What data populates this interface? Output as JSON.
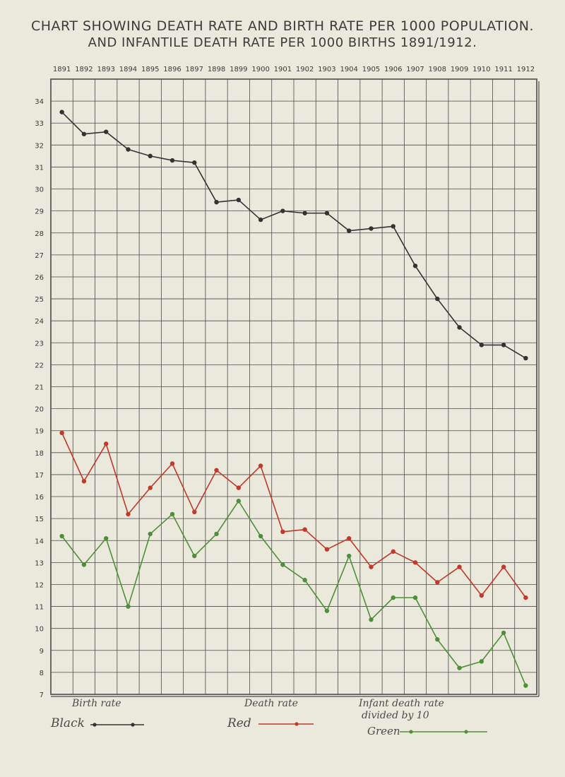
{
  "title_line1": "CHART SHOWING DEATH RATE AND BIRTH RATE PER 1000 POPULATION.",
  "title_line2": "AND INFANTILE DEATH RATE PER 1000 BIRTHS 1891/1912.",
  "colors": {
    "background": "#ebe8dc",
    "grid": "#4a4a4a",
    "birth_rate": "#333333",
    "death_rate": "#c0392b",
    "infant_death_rate": "#4f8f3a"
  },
  "legend": {
    "birth_label": "Birth rate",
    "birth_color_word": "Black",
    "death_label": "Death rate",
    "death_color_word": "Red",
    "infant_label_line1": "Infant death rate",
    "infant_label_line2": "divided by 10",
    "infant_color_word": "Green"
  },
  "chart_data": {
    "type": "line",
    "title": "CHART SHOWING DEATH RATE AND BIRTH RATE PER 1000 POPULATION. AND INFANTILE DEATH RATE PER 1000 BIRTHS 1891/1912.",
    "x": [
      "1891",
      "1892",
      "1893",
      "1894",
      "1895",
      "1896",
      "1897",
      "1898",
      "1899",
      "1900",
      "1901",
      "1902",
      "1903",
      "1904",
      "1905",
      "1906",
      "1907",
      "1908",
      "1909",
      "1910",
      "1911",
      "1912"
    ],
    "ylim": [
      7,
      35
    ],
    "yticks": [
      7,
      8,
      9,
      10,
      11,
      12,
      13,
      14,
      15,
      16,
      17,
      18,
      19,
      20,
      21,
      22,
      23,
      24,
      25,
      26,
      27,
      28,
      29,
      30,
      31,
      32,
      33,
      34
    ],
    "grid": true,
    "legend_position": "bottom",
    "series": [
      {
        "name": "Birth rate",
        "color": "black",
        "values": [
          33.5,
          32.5,
          32.6,
          31.8,
          31.5,
          31.3,
          31.2,
          29.4,
          29.5,
          28.6,
          29.0,
          28.9,
          28.9,
          28.1,
          28.2,
          28.3,
          26.5,
          25.0,
          23.7,
          22.9,
          22.9,
          22.3
        ]
      },
      {
        "name": "Death rate",
        "color": "red",
        "values": [
          18.9,
          16.7,
          18.4,
          15.2,
          16.4,
          17.5,
          15.3,
          17.2,
          16.4,
          17.4,
          14.4,
          14.5,
          13.6,
          14.1,
          12.8,
          13.5,
          13.0,
          12.1,
          12.8,
          11.5,
          12.8,
          11.4
        ]
      },
      {
        "name": "Infant death rate divided by 10",
        "color": "green",
        "values": [
          14.2,
          12.9,
          14.1,
          11.0,
          14.3,
          15.2,
          13.3,
          14.3,
          15.8,
          14.2,
          12.9,
          12.2,
          10.8,
          13.3,
          10.4,
          11.4,
          11.4,
          9.5,
          8.2,
          8.5,
          9.8,
          7.4
        ]
      }
    ]
  }
}
